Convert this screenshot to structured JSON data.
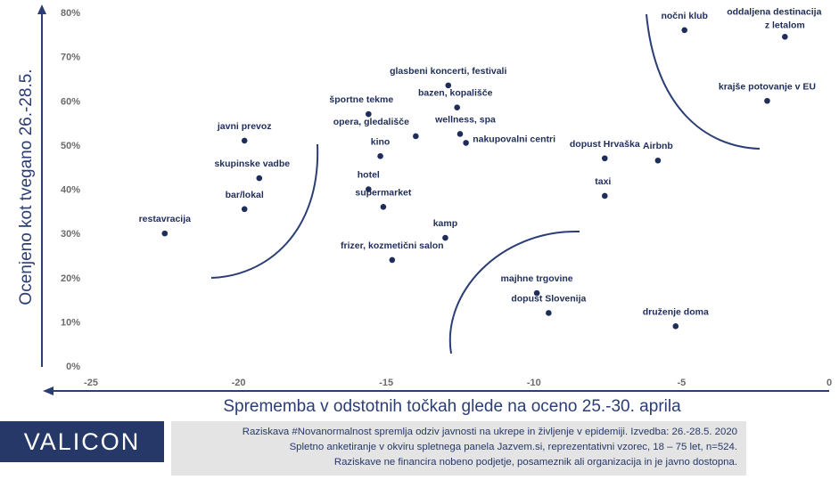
{
  "chart_data": {
    "type": "scatter",
    "xlabel": "Sprememba v odstotnih točkah glede na oceno 25.-30. aprila",
    "ylabel": "Ocenjeno kot tvegano 26.-28.5.",
    "xlim": [
      -25,
      0
    ],
    "ylim": [
      0,
      80
    ],
    "x_ticks": [
      "-25",
      "-20",
      "-15",
      "-10",
      "-5",
      "0"
    ],
    "y_ticks": [
      "0%",
      "10%",
      "20%",
      "30%",
      "40%",
      "50%",
      "60%",
      "70%",
      "80%"
    ],
    "grid": false,
    "points": [
      {
        "label": "restavracija",
        "x": -22.5,
        "y": 30
      },
      {
        "label": "javni prevoz",
        "x": -19.8,
        "y": 51
      },
      {
        "label": "skupinske vadbe",
        "x": -19.3,
        "y": 42.5
      },
      {
        "label": "bar/lokal",
        "x": -19.8,
        "y": 35.5
      },
      {
        "label": "športne tekme",
        "x": -15.6,
        "y": 57
      },
      {
        "label": "opera, gledališče",
        "x": -14,
        "y": 52
      },
      {
        "label": "kino",
        "x": -15.2,
        "y": 47.5
      },
      {
        "label": "hotel",
        "x": -15.6,
        "y": 40
      },
      {
        "label": "supermarket",
        "x": -15.1,
        "y": 36
      },
      {
        "label": "frizer, kozmetični salon",
        "x": -14.8,
        "y": 24
      },
      {
        "label": "glasbeni koncerti, festivali",
        "x": -12.9,
        "y": 63.5
      },
      {
        "label": "bazen, kopališče",
        "x": -12.6,
        "y": 58.5
      },
      {
        "label": "wellness, spa",
        "x": -12.5,
        "y": 52.5
      },
      {
        "label": "nakupovalni centri",
        "x": -12.3,
        "y": 50.5
      },
      {
        "label": "kamp",
        "x": -13,
        "y": 29
      },
      {
        "label": "majhne trgovine",
        "x": -9.9,
        "y": 16.5
      },
      {
        "label": "dopust Slovenija",
        "x": -9.5,
        "y": 12
      },
      {
        "label": "dopust Hrvaška",
        "x": -7.6,
        "y": 47
      },
      {
        "label": "taxi",
        "x": -7.6,
        "y": 38.5
      },
      {
        "label": "Airbnb",
        "x": -5.8,
        "y": 46.5
      },
      {
        "label": "nočni klub",
        "x": -4.9,
        "y": 76
      },
      {
        "label": "oddaljena destinacija z letalom",
        "x": -1.5,
        "y": 74.5
      },
      {
        "label": "krajše potovanje v EU",
        "x": -2.1,
        "y": 60
      },
      {
        "label": "druženje doma",
        "x": -5.2,
        "y": 9
      }
    ],
    "point_color": "#1f2d5a",
    "axis_color": "#2b3d75"
  },
  "logo": "VALICON",
  "footnote": [
    "Raziskava #Novanormalnost spremlja odziv javnosti na ukrepe in življenje v epidemiji. Izvedba: 26.-28.5. 2020",
    "Spletno anketiranje v okviru spletnega panela Jazvem.si, reprezentativni vzorec, 18 – 75 let, n=524.",
    "Raziskave ne financira nobeno podjetje, posameznik ali organizacija in je javno dostopna."
  ]
}
